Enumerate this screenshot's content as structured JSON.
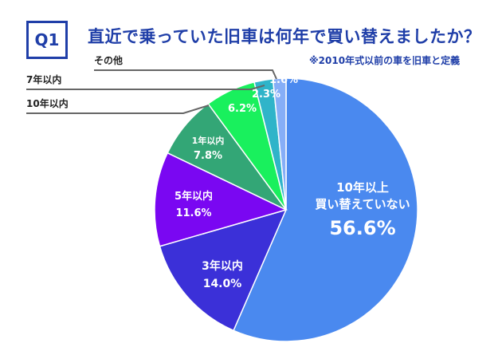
{
  "header": {
    "question_tag": "Q1",
    "title": "直近で乗っていた旧車は何年で買い替えましたか？",
    "note": "※2010年式以前の車を旧車と定義"
  },
  "chart_data": {
    "type": "pie",
    "start": "12 o'clock",
    "direction": "clockwise",
    "slices": [
      {
        "label": "10年以上\n買い替えていない",
        "value": 56.6,
        "value_text": "56.6%",
        "color": "#4a89ef",
        "label_color": "#ffffff"
      },
      {
        "label": "3年以内",
        "value": 14.0,
        "value_text": "14.0%",
        "color": "#3b30d8",
        "label_color": "#ffffff"
      },
      {
        "label": "5年以内",
        "value": 11.6,
        "value_text": "11.6%",
        "color": "#7a07f2",
        "label_color": "#ffffff"
      },
      {
        "label": "1年以内",
        "value": 7.8,
        "value_text": "7.8%",
        "color": "#33a676",
        "label_color": "#ffffff"
      },
      {
        "label": "10年以内",
        "value": 6.2,
        "value_text": "6.2%",
        "color": "#19f05d",
        "label_color": "#ffffff",
        "leader": true
      },
      {
        "label": "7年以内",
        "value": 2.3,
        "value_text": "2.3%",
        "color": "#2fb4c9",
        "label_color": "#ffffff",
        "leader": true
      },
      {
        "label": "その他",
        "value": 1.6,
        "value_text": "1.6%",
        "color": "#86aef7",
        "label_color": "#ffffff",
        "leader": true
      }
    ]
  }
}
